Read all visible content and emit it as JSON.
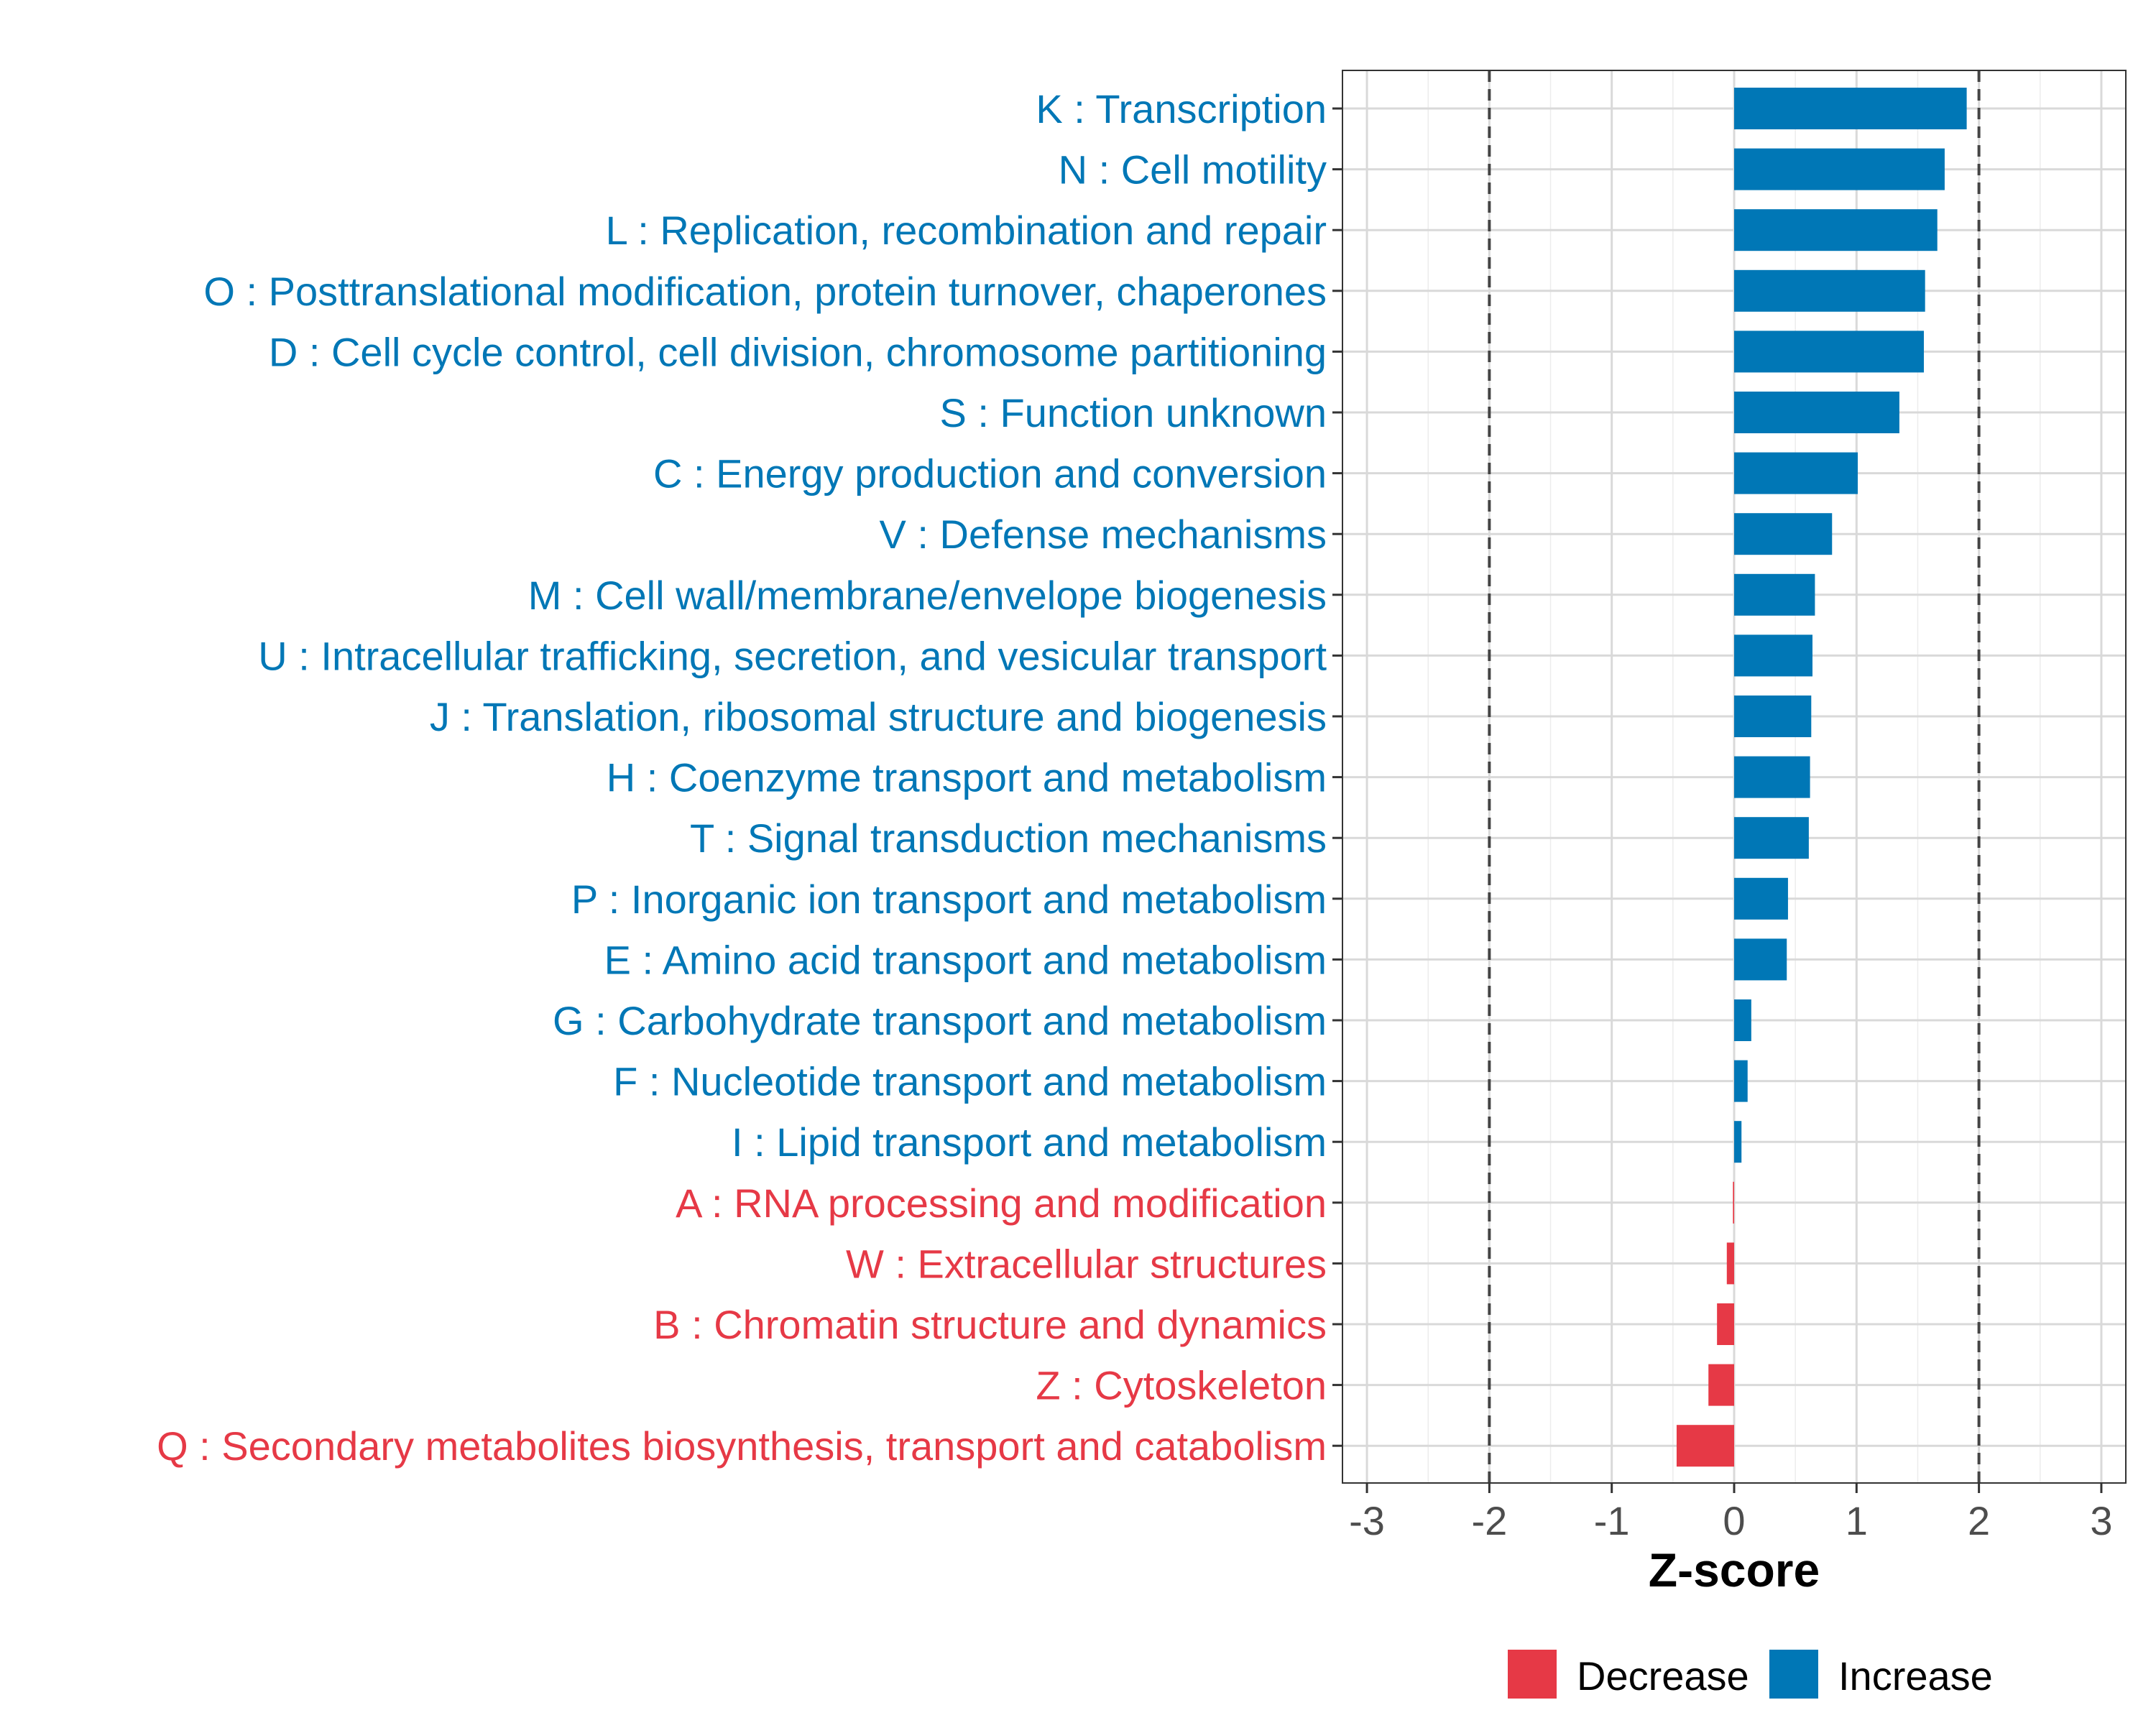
{
  "chart_data": {
    "type": "bar",
    "orientation": "horizontal",
    "title": "",
    "xlabel": "Z-score",
    "ylabel": "",
    "xlim": [
      -3.2,
      3.2
    ],
    "x_ticks": [
      -3,
      -2,
      -1,
      0,
      1,
      2,
      3
    ],
    "x_tick_labels": [
      "-3",
      "-2",
      "-1",
      "0",
      "1",
      "2",
      "3"
    ],
    "reference_lines": [
      -2,
      2
    ],
    "grid": true,
    "colors": {
      "Decrease": "#e63946",
      "Increase": "#0077b6"
    },
    "legend": {
      "position": "bottom",
      "entries": [
        {
          "label": "Decrease",
          "color": "#e63946"
        },
        {
          "label": "Increase",
          "color": "#0077b6"
        }
      ]
    },
    "categories": [
      "K : Transcription",
      "N : Cell motility",
      "L : Replication, recombination and repair",
      "O : Posttranslational modification, protein turnover, chaperones",
      "D : Cell cycle control, cell division, chromosome partitioning",
      "S : Function unknown",
      "C : Energy production and conversion",
      "V : Defense mechanisms",
      "M : Cell wall/membrane/envelope biogenesis",
      "U : Intracellular trafficking, secretion, and vesicular transport",
      "J : Translation, ribosomal structure and biogenesis",
      "H : Coenzyme transport and metabolism",
      "T : Signal transduction mechanisms",
      "P : Inorganic ion transport and metabolism",
      "E : Amino acid transport and metabolism",
      "G : Carbohydrate transport and metabolism",
      "F : Nucleotide transport and metabolism",
      "I : Lipid transport and metabolism",
      "A : RNA processing and modification",
      "W : Extracellular structures",
      "B : Chromatin structure and dynamics",
      "Z : Cytoskeleton",
      "Q : Secondary metabolites biosynthesis, transport and catabolism"
    ],
    "values": [
      1.9,
      1.72,
      1.66,
      1.56,
      1.55,
      1.35,
      1.01,
      0.8,
      0.66,
      0.64,
      0.63,
      0.62,
      0.61,
      0.44,
      0.43,
      0.14,
      0.11,
      0.06,
      -0.01,
      -0.06,
      -0.14,
      -0.21,
      -0.47
    ],
    "groups": [
      "Increase",
      "Increase",
      "Increase",
      "Increase",
      "Increase",
      "Increase",
      "Increase",
      "Increase",
      "Increase",
      "Increase",
      "Increase",
      "Increase",
      "Increase",
      "Increase",
      "Increase",
      "Increase",
      "Increase",
      "Increase",
      "Decrease",
      "Decrease",
      "Decrease",
      "Decrease",
      "Decrease"
    ]
  }
}
